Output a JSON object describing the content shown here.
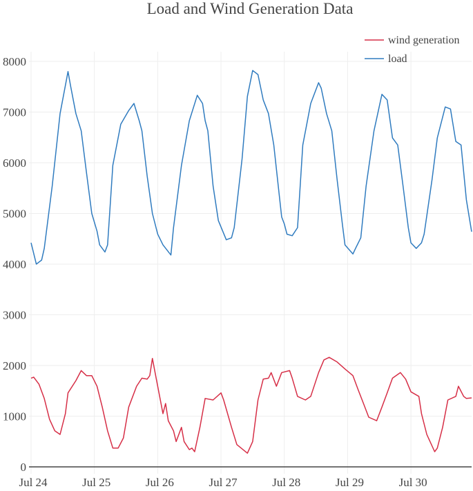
{
  "chart_data": {
    "type": "line",
    "title": "Load and Wind Generation Data",
    "xlabel": "",
    "ylabel": "",
    "ylim": [
      0,
      8000
    ],
    "xlim": [
      "Jul 24 00:00",
      "Jul 30 23:00"
    ],
    "grid": true,
    "legend_placement": "top-right",
    "y_ticks": [
      "0",
      "1000",
      "2000",
      "3000",
      "4000",
      "5000",
      "6000",
      "7000",
      "8000"
    ],
    "x_ticks": [
      {
        "label": "Jul 24",
        "at": "Jul 24 00:00"
      },
      {
        "label": "Jul 25",
        "at": "Jul 25 00:00"
      },
      {
        "label": "Jul 26",
        "at": "Jul 26 00:00"
      },
      {
        "label": "Jul 27",
        "at": "Jul 27 00:00"
      },
      {
        "label": "Jul 28",
        "at": "Jul 28 00:00"
      },
      {
        "label": "Jul 29",
        "at": "Jul 29 00:00"
      },
      {
        "label": "Jul 30",
        "at": "Jul 30 00:00"
      }
    ],
    "series": [
      {
        "name": "wind generation",
        "color": "#d62e46",
        "points": [
          [
            "Jul 24 00:00",
            1750
          ],
          [
            "Jul 24 01:00",
            1770
          ],
          [
            "Jul 24 03:00",
            1630
          ],
          [
            "Jul 24 05:00",
            1350
          ],
          [
            "Jul 24 07:00",
            940
          ],
          [
            "Jul 24 09:00",
            710
          ],
          [
            "Jul 24 11:00",
            640
          ],
          [
            "Jul 24 13:00",
            1050
          ],
          [
            "Jul 24 14:00",
            1460
          ],
          [
            "Jul 24 17:00",
            1700
          ],
          [
            "Jul 24 19:00",
            1900
          ],
          [
            "Jul 24 21:00",
            1800
          ],
          [
            "Jul 24 23:00",
            1800
          ],
          [
            "Jul 25 01:00",
            1590
          ],
          [
            "Jul 25 03:00",
            1180
          ],
          [
            "Jul 25 05:00",
            710
          ],
          [
            "Jul 25 07:00",
            370
          ],
          [
            "Jul 25 09:00",
            370
          ],
          [
            "Jul 25 11:00",
            570
          ],
          [
            "Jul 25 13:00",
            1180
          ],
          [
            "Jul 25 16:00",
            1590
          ],
          [
            "Jul 25 18:00",
            1750
          ],
          [
            "Jul 25 20:00",
            1730
          ],
          [
            "Jul 25 21:00",
            1800
          ],
          [
            "Jul 25 22:00",
            2140
          ],
          [
            "Jul 25 23:00",
            1860
          ],
          [
            "Jul 26 01:00",
            1320
          ],
          [
            "Jul 26 02:00",
            1050
          ],
          [
            "Jul 26 03:00",
            1250
          ],
          [
            "Jul 26 04:00",
            910
          ],
          [
            "Jul 26 06:00",
            710
          ],
          [
            "Jul 26 07:00",
            500
          ],
          [
            "Jul 26 09:00",
            780
          ],
          [
            "Jul 26 10:00",
            500
          ],
          [
            "Jul 26 12:00",
            340
          ],
          [
            "Jul 26 13:00",
            370
          ],
          [
            "Jul 26 14:00",
            300
          ],
          [
            "Jul 26 16:00",
            780
          ],
          [
            "Jul 26 18:00",
            1350
          ],
          [
            "Jul 26 21:00",
            1320
          ],
          [
            "Jul 27 00:00",
            1460
          ],
          [
            "Jul 27 01:00",
            1320
          ],
          [
            "Jul 27 04:00",
            780
          ],
          [
            "Jul 27 06:00",
            440
          ],
          [
            "Jul 27 10:00",
            270
          ],
          [
            "Jul 27 12:00",
            500
          ],
          [
            "Jul 27 14:00",
            1320
          ],
          [
            "Jul 27 16:00",
            1730
          ],
          [
            "Jul 27 18:00",
            1750
          ],
          [
            "Jul 27 19:00",
            1860
          ],
          [
            "Jul 27 21:00",
            1590
          ],
          [
            "Jul 27 23:00",
            1860
          ],
          [
            "Jul 28 02:00",
            1900
          ],
          [
            "Jul 28 03:00",
            1750
          ],
          [
            "Jul 28 05:00",
            1390
          ],
          [
            "Jul 28 08:00",
            1320
          ],
          [
            "Jul 28 10:00",
            1390
          ],
          [
            "Jul 28 13:00",
            1860
          ],
          [
            "Jul 28 15:00",
            2110
          ],
          [
            "Jul 28 17:00",
            2160
          ],
          [
            "Jul 28 20:00",
            2070
          ],
          [
            "Jul 28 23:00",
            1930
          ],
          [
            "Jul 29 02:00",
            1800
          ],
          [
            "Jul 29 04:00",
            1520
          ],
          [
            "Jul 29 06:00",
            1250
          ],
          [
            "Jul 29 08:00",
            980
          ],
          [
            "Jul 29 11:00",
            910
          ],
          [
            "Jul 29 13:00",
            1180
          ],
          [
            "Jul 29 15:00",
            1460
          ],
          [
            "Jul 29 17:00",
            1750
          ],
          [
            "Jul 29 20:00",
            1860
          ],
          [
            "Jul 29 22:00",
            1730
          ],
          [
            "Jul 30 00:00",
            1480
          ],
          [
            "Jul 30 03:00",
            1390
          ],
          [
            "Jul 30 04:00",
            1050
          ],
          [
            "Jul 30 06:00",
            640
          ],
          [
            "Jul 30 09:00",
            300
          ],
          [
            "Jul 30 10:00",
            370
          ],
          [
            "Jul 30 12:00",
            780
          ],
          [
            "Jul 30 14:00",
            1320
          ],
          [
            "Jul 30 17:00",
            1390
          ],
          [
            "Jul 30 18:00",
            1590
          ],
          [
            "Jul 30 20:00",
            1390
          ],
          [
            "Jul 30 21:00",
            1350
          ],
          [
            "Jul 30 23:00",
            1360
          ]
        ]
      },
      {
        "name": "load",
        "color": "#2f7bbf",
        "points": [
          [
            "Jul 24 00:00",
            4420
          ],
          [
            "Jul 24 02:00",
            4000
          ],
          [
            "Jul 24 04:00",
            4080
          ],
          [
            "Jul 24 05:00",
            4310
          ],
          [
            "Jul 24 08:00",
            5540
          ],
          [
            "Jul 24 11:00",
            6970
          ],
          [
            "Jul 24 14:00",
            7800
          ],
          [
            "Jul 24 15:00",
            7510
          ],
          [
            "Jul 24 17:00",
            6970
          ],
          [
            "Jul 24 19:00",
            6630
          ],
          [
            "Jul 24 21:00",
            5810
          ],
          [
            "Jul 24 23:00",
            5000
          ],
          [
            "Jul 25 01:00",
            4650
          ],
          [
            "Jul 25 02:00",
            4380
          ],
          [
            "Jul 25 04:00",
            4240
          ],
          [
            "Jul 25 05:00",
            4380
          ],
          [
            "Jul 25 07:00",
            5950
          ],
          [
            "Jul 25 10:00",
            6760
          ],
          [
            "Jul 25 13:00",
            7030
          ],
          [
            "Jul 25 15:00",
            7170
          ],
          [
            "Jul 25 17:00",
            6830
          ],
          [
            "Jul 25 18:00",
            6630
          ],
          [
            "Jul 25 20:00",
            5740
          ],
          [
            "Jul 25 22:00",
            5000
          ],
          [
            "Jul 26 00:00",
            4590
          ],
          [
            "Jul 26 02:00",
            4380
          ],
          [
            "Jul 26 05:00",
            4180
          ],
          [
            "Jul 26 06:00",
            4720
          ],
          [
            "Jul 26 09:00",
            5950
          ],
          [
            "Jul 26 12:00",
            6830
          ],
          [
            "Jul 26 15:00",
            7330
          ],
          [
            "Jul 26 17:00",
            7170
          ],
          [
            "Jul 26 18:00",
            6830
          ],
          [
            "Jul 26 19:00",
            6630
          ],
          [
            "Jul 26 21:00",
            5540
          ],
          [
            "Jul 26 23:00",
            4860
          ],
          [
            "Jul 27 02:00",
            4480
          ],
          [
            "Jul 27 04:00",
            4520
          ],
          [
            "Jul 27 05:00",
            4720
          ],
          [
            "Jul 27 08:00",
            6080
          ],
          [
            "Jul 27 10:00",
            7310
          ],
          [
            "Jul 27 12:00",
            7820
          ],
          [
            "Jul 27 14:00",
            7740
          ],
          [
            "Jul 27 16:00",
            7240
          ],
          [
            "Jul 27 18:00",
            6970
          ],
          [
            "Jul 27 20:00",
            6350
          ],
          [
            "Jul 27 22:00",
            5400
          ],
          [
            "Jul 27 23:00",
            4930
          ],
          [
            "Jul 28 00:00",
            4790
          ],
          [
            "Jul 28 01:00",
            4590
          ],
          [
            "Jul 28 03:00",
            4560
          ],
          [
            "Jul 28 05:00",
            4720
          ],
          [
            "Jul 28 07:00",
            6350
          ],
          [
            "Jul 28 10:00",
            7170
          ],
          [
            "Jul 28 13:00",
            7580
          ],
          [
            "Jul 28 14:00",
            7470
          ],
          [
            "Jul 28 16:00",
            6970
          ],
          [
            "Jul 28 18:00",
            6630
          ],
          [
            "Jul 28 20:00",
            5670
          ],
          [
            "Jul 28 22:00",
            4790
          ],
          [
            "Jul 28 23:00",
            4380
          ],
          [
            "Jul 29 02:00",
            4200
          ],
          [
            "Jul 29 03:00",
            4310
          ],
          [
            "Jul 29 05:00",
            4520
          ],
          [
            "Jul 29 07:00",
            5540
          ],
          [
            "Jul 29 10:00",
            6630
          ],
          [
            "Jul 29 13:00",
            7350
          ],
          [
            "Jul 29 15:00",
            7240
          ],
          [
            "Jul 29 17:00",
            6490
          ],
          [
            "Jul 29 19:00",
            6350
          ],
          [
            "Jul 29 21:00",
            5540
          ],
          [
            "Jul 29 23:00",
            4720
          ],
          [
            "Jul 30 00:00",
            4420
          ],
          [
            "Jul 30 02:00",
            4310
          ],
          [
            "Jul 30 04:00",
            4420
          ],
          [
            "Jul 30 05:00",
            4590
          ],
          [
            "Jul 30 08:00",
            5670
          ],
          [
            "Jul 30 10:00",
            6490
          ],
          [
            "Jul 30 13:00",
            7100
          ],
          [
            "Jul 30 15:00",
            7060
          ],
          [
            "Jul 30 17:00",
            6420
          ],
          [
            "Jul 30 19:00",
            6350
          ],
          [
            "Jul 30 21:00",
            5270
          ],
          [
            "Jul 30 23:00",
            4640
          ]
        ]
      }
    ]
  }
}
